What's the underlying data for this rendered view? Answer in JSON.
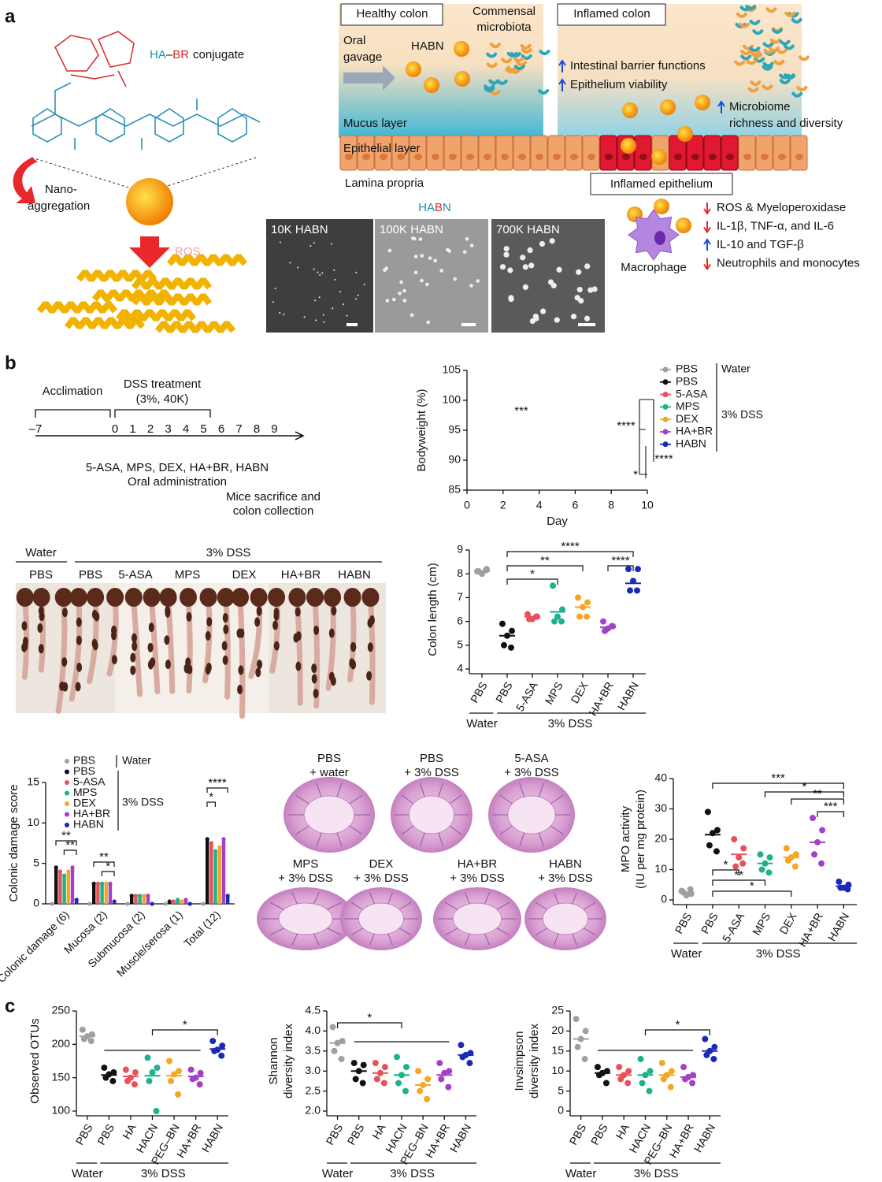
{
  "panel_labels": [
    "a",
    "b",
    "c"
  ],
  "panel_a": {
    "conjugate": {
      "ha": "HA",
      "dash": "–",
      "br": "BR",
      "rest": "conjugate"
    },
    "nano_aggregation": [
      "Nano-",
      "aggregation"
    ],
    "ros": "ROS",
    "healthy_colon": "Healthy colon",
    "inflamed_colon": "Inflamed colon",
    "commensal": [
      "Commensal",
      "microbiota"
    ],
    "oral_gavage": [
      "Oral",
      "gavage"
    ],
    "habn": "HABN",
    "barrier": "Intestinal barrier functions",
    "viability": "Epithelium viability",
    "microbiome": [
      "Microbiome",
      "richness and diversity"
    ],
    "mucus": "Mucus layer",
    "epithelial": "Epithelial layer",
    "lamina": "Lamina propria",
    "inflamed_epithelium": "Inflamed epithelium",
    "habn_title": {
      "ha": "HA",
      "b": "B",
      "n": "N"
    },
    "micrographs": [
      "10K HABN",
      "100K HABN",
      "700K HABN"
    ],
    "macrophage": "Macrophage",
    "effects": [
      "ROS & Myeloperoxidase",
      "IL-1β, TNF-α, and IL-6",
      "IL-10 and TGF-β",
      "Neutrophils and monocytes"
    ]
  },
  "timeline": {
    "acclimation": "Acclimation",
    "dss": [
      "DSS treatment",
      "(3%, 40K)"
    ],
    "days": [
      {
        "value": -7,
        "label": "–7"
      },
      0,
      1,
      2,
      3,
      4,
      5,
      6,
      7,
      8,
      9
    ],
    "arrow_days": [
      0,
      2,
      4,
      6
    ],
    "sacrifice_day": 9,
    "treatments": "5-ASA, MPS, DEX, HA+BR, HABN",
    "oral": "Oral administration",
    "sacrifice": [
      "Mice sacrifice and",
      "colon collection"
    ]
  },
  "photo": {
    "groups": [
      "Water",
      "3% DSS"
    ],
    "lanes": [
      "PBS",
      "PBS",
      "5-ASA",
      "MPS",
      "DEX",
      "HA+BR",
      "HABN"
    ]
  },
  "histology": [
    [
      "PBS",
      "+ water"
    ],
    [
      "PBS",
      "+ 3% DSS"
    ],
    [
      "5-ASA",
      "+ 3% DSS"
    ],
    [
      "MPS",
      "+ 3% DSS"
    ],
    [
      "DEX",
      "+ 3% DSS"
    ],
    [
      "HA+BR",
      "+ 3% DSS"
    ],
    [
      "HABN",
      "+ 3% DSS"
    ]
  ],
  "chart_data": [
    {
      "type": "line",
      "y_label": "Bodyweight (%)",
      "x_label": "Day",
      "x": [
        0,
        1,
        2,
        3,
        4,
        5,
        6,
        7,
        8,
        9
      ],
      "xlim": [
        0,
        10
      ],
      "xticks": [
        0,
        2,
        4,
        6,
        8,
        10
      ],
      "ylim": [
        85,
        105
      ],
      "yticks": [
        85,
        90,
        95,
        100,
        105
      ],
      "markers_x": [
        0,
        2,
        4,
        6
      ],
      "series": [
        {
          "name": "PBS",
          "color": "#a0a0a0",
          "values": [
            100,
            101,
            101.5,
            101,
            100.5,
            100,
            99.5,
            100,
            102,
            102
          ]
        },
        {
          "name": "PBS",
          "color": "#111111",
          "values": [
            100,
            101,
            102,
            101,
            100,
            98,
            95,
            91,
            87,
            86
          ]
        },
        {
          "name": "5-ASA",
          "color": "#e8505b",
          "values": [
            100,
            101,
            101,
            100,
            100,
            97,
            94,
            90,
            87,
            85.5
          ]
        },
        {
          "name": "MPS",
          "color": "#1bb28c",
          "values": [
            100,
            101,
            100,
            101,
            101.5,
            100,
            97,
            95,
            92.5,
            91
          ]
        },
        {
          "name": "DEX",
          "color": "#f5a623",
          "values": [
            100,
            101,
            101.5,
            100,
            101,
            98,
            95,
            92,
            89.5,
            89.5
          ]
        },
        {
          "name": "HA+BR",
          "color": "#a43fc8",
          "values": [
            100,
            98,
            92.5,
            96,
            99,
            97,
            94,
            91,
            87,
            85.5
          ]
        },
        {
          "name": "HABN",
          "color": "#1a2ab8",
          "values": [
            100,
            101,
            101,
            100,
            100,
            99,
            99,
            97.5,
            97.5,
            100
          ]
        }
      ],
      "legend_groups": [
        "Water",
        "3% DSS"
      ],
      "annotations": [
        "***",
        "****",
        "****",
        "*"
      ]
    },
    {
      "type": "dot",
      "y_label": [
        "Colon length (cm)"
      ],
      "categories": [
        "PBS",
        "PBS",
        "5-ASA",
        "MPS",
        "DEX",
        "HA+BR",
        "HABN"
      ],
      "colors": [
        "#a0a0a0",
        "#111111",
        "#e8505b",
        "#1bb28c",
        "#f5a623",
        "#a43fc8",
        "#1a2ab8"
      ],
      "values": [
        8.1,
        5.4,
        6.2,
        6.4,
        6.6,
        5.75,
        7.6
      ],
      "points": [
        [
          8.1,
          8.2,
          8.0,
          8.1,
          8.15
        ],
        [
          5.9,
          5.6,
          5.4,
          5.0,
          4.9
        ],
        [
          6.3,
          6.2,
          6.1,
          6.1,
          6.2
        ],
        [
          7.5,
          6.5,
          6.2,
          6.0,
          6.0
        ],
        [
          7.0,
          6.8,
          6.6,
          6.2,
          6.2
        ],
        [
          6.0,
          5.8,
          5.7,
          5.6,
          5.8
        ],
        [
          8.2,
          8.2,
          7.7,
          7.3,
          7.3
        ]
      ],
      "ylim": [
        4,
        9
      ],
      "yticks": [
        4,
        5,
        6,
        7,
        8,
        9
      ],
      "group_labels": [
        "Water",
        "3% DSS"
      ],
      "annotations": [
        "*",
        "**",
        "****",
        "****"
      ]
    },
    {
      "type": "bar",
      "y_label": "Colonic damage score",
      "categories": [
        "Colonic damage (6)",
        "Mucosa (2)",
        "Submucosa (2)",
        "Muscle/serosa (1)",
        "Total (12)"
      ],
      "ylim": [
        0,
        15
      ],
      "yticks": [
        0,
        5,
        10,
        15
      ],
      "series": [
        {
          "name": "PBS",
          "color": "#a0a0a0",
          "values": [
            0,
            0,
            0,
            0,
            0
          ]
        },
        {
          "name": "PBS",
          "color": "#111111",
          "values": [
            4.5,
            2.5,
            1,
            0.3,
            8
          ]
        },
        {
          "name": "5-ASA",
          "color": "#e8505b",
          "values": [
            4,
            2.5,
            1,
            0.3,
            7.5
          ]
        },
        {
          "name": "MPS",
          "color": "#1bb28c",
          "values": [
            3.5,
            2.5,
            1,
            0.5,
            6.5
          ]
        },
        {
          "name": "DEX",
          "color": "#f5a623",
          "values": [
            4,
            2.5,
            1,
            0.3,
            7
          ]
        },
        {
          "name": "HA+BR",
          "color": "#a43fc8",
          "values": [
            4.5,
            2.5,
            1,
            0.5,
            8
          ]
        },
        {
          "name": "HABN",
          "color": "#1a2ab8",
          "values": [
            0.5,
            0.3,
            0,
            0,
            1
          ]
        }
      ],
      "legend_groups": [
        "Water",
        "3% DSS"
      ],
      "annotations": [
        "**",
        "**",
        "**",
        "*",
        "*",
        "****"
      ]
    },
    {
      "type": "dot",
      "y_label": [
        "MPO activity",
        "(IU per mg protein)"
      ],
      "categories": [
        "PBS",
        "PBS",
        "5-ASA",
        "MPS",
        "DEX",
        "HA+BR",
        "HABN"
      ],
      "colors": [
        "#a0a0a0",
        "#111111",
        "#e8505b",
        "#1bb28c",
        "#f5a623",
        "#a43fc8",
        "#1a2ab8"
      ],
      "values": [
        2.5,
        21.5,
        15,
        12,
        14,
        19,
        4.5
      ],
      "points": [
        [
          3,
          2,
          1.5,
          2.5,
          3.5
        ],
        [
          29,
          23,
          22,
          18,
          16
        ],
        [
          20,
          17,
          14,
          11,
          12
        ],
        [
          15,
          14,
          12,
          10,
          9
        ],
        [
          17,
          15,
          14,
          13,
          11
        ],
        [
          27,
          23,
          19,
          15,
          12
        ],
        [
          6,
          5,
          4,
          4,
          3.5
        ]
      ],
      "ylim": [
        0,
        40
      ],
      "yticks": [
        0,
        10,
        20,
        30,
        40
      ],
      "group_labels": [
        "Water",
        "3% DSS"
      ],
      "annotations": [
        "***",
        "*",
        "**",
        "***",
        "*",
        "**",
        "*"
      ]
    },
    {
      "type": "dot",
      "y_label": [
        "Observed OTUs"
      ],
      "categories": [
        "PBS",
        "PBS",
        "HA",
        "HACN",
        "PEG–BN",
        "HA+BR",
        "HABN"
      ],
      "colors": [
        "#a0a0a0",
        "#111111",
        "#e8505b",
        "#1bb28c",
        "#f5a623",
        "#a43fc8",
        "#1a2ab8"
      ],
      "values": [
        212,
        154,
        152,
        153,
        153,
        152,
        193
      ],
      "points": [
        [
          222,
          215,
          212,
          208,
          205
        ],
        [
          165,
          158,
          155,
          150,
          145
        ],
        [
          162,
          158,
          150,
          145,
          140
        ],
        [
          180,
          165,
          158,
          145,
          100
        ],
        [
          175,
          160,
          155,
          145,
          125
        ],
        [
          162,
          157,
          150,
          148,
          140
        ],
        [
          205,
          198,
          192,
          190,
          183
        ]
      ],
      "ylim": [
        100,
        250
      ],
      "yticks": [
        100,
        150,
        200,
        250
      ],
      "group_labels": [
        "Water",
        "3% DSS"
      ],
      "annotations": [
        "*"
      ]
    },
    {
      "type": "dot",
      "y_label": [
        "Shannon",
        "diversity index"
      ],
      "categories": [
        "PBS",
        "PBS",
        "HA",
        "HACN",
        "PEG–BN",
        "HA+BR",
        "HABN"
      ],
      "colors": [
        "#a0a0a0",
        "#111111",
        "#e8505b",
        "#1bb28c",
        "#f5a623",
        "#a43fc8",
        "#1a2ab8"
      ],
      "values": [
        3.7,
        3.0,
        2.95,
        2.9,
        2.65,
        2.9,
        3.4
      ],
      "points": [
        [
          4.1,
          3.75,
          3.7,
          3.5,
          3.3
        ],
        [
          3.2,
          3.15,
          3.0,
          2.8,
          2.7
        ],
        [
          3.2,
          3.1,
          2.95,
          2.8,
          2.7
        ],
        [
          3.35,
          3.1,
          2.9,
          2.7,
          2.5
        ],
        [
          3.0,
          2.8,
          2.65,
          2.5,
          2.3
        ],
        [
          3.2,
          3.0,
          2.95,
          2.8,
          2.6
        ],
        [
          3.65,
          3.45,
          3.4,
          3.35,
          3.2
        ]
      ],
      "ylim": [
        2.0,
        4.5
      ],
      "yticks": [
        {
          "value": 2.0,
          "label": "2.0"
        },
        2.5,
        {
          "value": 3.0,
          "label": "3.0"
        },
        3.5,
        {
          "value": 4.0,
          "label": "4.0"
        },
        4.5
      ],
      "group_labels": [
        "Water",
        "3% DSS"
      ],
      "annotations": [
        "*"
      ]
    },
    {
      "type": "dot",
      "y_label": [
        "Invsimpson",
        "diversity index"
      ],
      "categories": [
        "PBS",
        "PBS",
        "HA",
        "HACN",
        "PEG–BN",
        "HA+BR",
        "HABN"
      ],
      "colors": [
        "#a0a0a0",
        "#111111",
        "#e8505b",
        "#1bb28c",
        "#f5a623",
        "#a43fc8",
        "#1a2ab8"
      ],
      "values": [
        18,
        9.5,
        9,
        9,
        9,
        8.5,
        15
      ],
      "points": [
        [
          23,
          20,
          18,
          16,
          13
        ],
        [
          11,
          10,
          9.5,
          9,
          7
        ],
        [
          11,
          10,
          9,
          8,
          7
        ],
        [
          13,
          10,
          9,
          7,
          5
        ],
        [
          12,
          10,
          9,
          8,
          6
        ],
        [
          11,
          9,
          8.5,
          8,
          7
        ],
        [
          18,
          16,
          15,
          14,
          13
        ]
      ],
      "ylim": [
        0,
        25
      ],
      "yticks": [
        0,
        5,
        10,
        15,
        20,
        25
      ],
      "group_labels": [
        "Water",
        "3% DSS"
      ],
      "annotations": [
        "*"
      ]
    }
  ]
}
